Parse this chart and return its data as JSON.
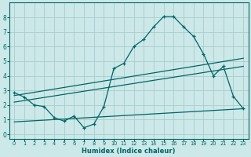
{
  "xlabel": "Humidex (Indice chaleur)",
  "bg_color": "#cce8e8",
  "line_color": "#006666",
  "grid_color": "#aacccc",
  "x_ticks": [
    0,
    1,
    2,
    3,
    4,
    5,
    6,
    7,
    8,
    9,
    10,
    11,
    12,
    13,
    14,
    15,
    16,
    17,
    18,
    19,
    20,
    21,
    22,
    23
  ],
  "y_ticks": [
    0,
    1,
    2,
    3,
    4,
    5,
    6,
    7,
    8
  ],
  "ylim": [
    -0.3,
    9.0
  ],
  "xlim": [
    -0.5,
    23.5
  ],
  "line1_x": [
    0,
    1,
    2,
    3,
    4,
    5,
    6,
    7,
    8,
    9,
    10,
    11,
    12,
    13,
    14,
    15,
    16,
    17,
    18,
    19,
    20,
    21,
    22,
    23
  ],
  "line1_y": [
    2.85,
    2.55,
    2.0,
    1.9,
    1.15,
    0.9,
    1.25,
    0.45,
    0.7,
    1.9,
    4.5,
    4.85,
    6.0,
    6.5,
    7.35,
    8.05,
    8.05,
    7.35,
    6.7,
    5.5,
    4.0,
    4.65,
    2.6,
    1.75
  ],
  "line2_x": [
    0,
    23
  ],
  "line2_y": [
    2.65,
    5.2
  ],
  "line3_x": [
    0,
    23
  ],
  "line3_y": [
    2.2,
    4.65
  ],
  "line4_x": [
    0,
    23
  ],
  "line4_y": [
    0.85,
    1.75
  ]
}
